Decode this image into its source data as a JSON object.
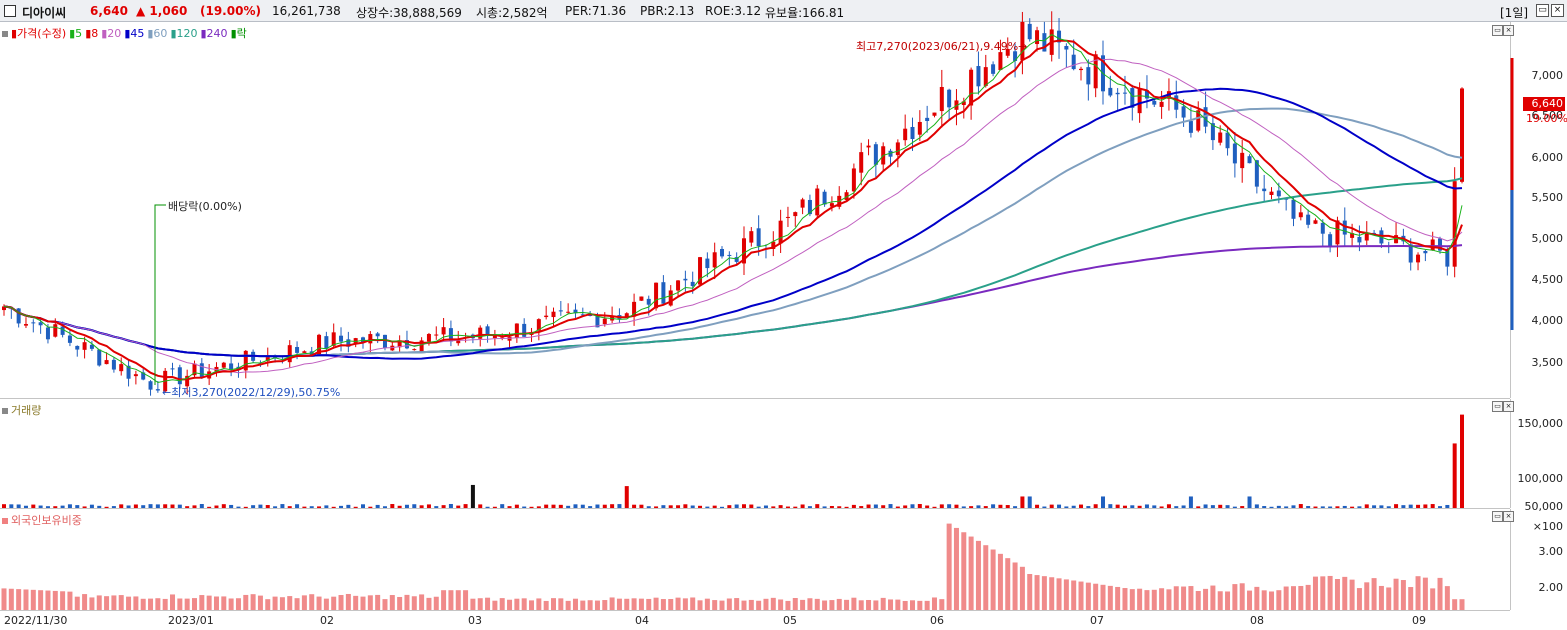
{
  "header": {
    "name": "디아이씨",
    "price": "6,640",
    "change": "▲ 1,060",
    "change_pct": "(19.00%)",
    "volume": "16,261,738",
    "listed_shares": "상장수:38,888,569",
    "market_cap": "시총:2,582억",
    "per": "PER:71.36",
    "pbr": "PBR:2.13",
    "roe": "ROE:3.12",
    "float_ratio": "유보율:166.81",
    "period": "[1일]",
    "up_color": "#e00000",
    "down_color": "#1f5fbf"
  },
  "price_panel": {
    "legend": [
      "가격(수정)",
      "5",
      "8",
      "20",
      "45",
      "60",
      "120",
      "240",
      "락"
    ],
    "legend_colors": [
      "#e00000",
      "#19b219",
      "#e00000",
      "#c060c0",
      "#0000c8",
      "#7f9fbf",
      "#2aa08a",
      "#7a2abf",
      "#009000"
    ],
    "high_annotation": "최고7,270(2023/06/21),9.49%→",
    "low_annotation": "←최저3,270(2022/12/29),50.75%",
    "dividend_annotation": "배당락(0.00%)",
    "current_price_label": "6,640",
    "current_pct_label": "19.00%",
    "y_ticks": [
      "7,000",
      "6,500",
      "6,000",
      "5,500",
      "5,000",
      "4,500",
      "4,000",
      "3,500"
    ]
  },
  "volume_panel": {
    "legend": "거래량",
    "y_ticks": [
      "150,000",
      "100,000",
      "50,000",
      "×100"
    ]
  },
  "foreign_panel": {
    "legend": "외국인보유비중",
    "y_ticks": [
      "3.00",
      "2.00"
    ]
  },
  "x_axis": [
    "2022/11/30",
    "2023/01",
    "02",
    "03",
    "04",
    "05",
    "06",
    "07",
    "08",
    "09"
  ],
  "chart_data": {
    "type": "candlestick",
    "title": "",
    "price_range": [
      3100,
      7400
    ],
    "key_points": [
      {
        "label": "2022/11/30",
        "close": 4150
      },
      {
        "label": "2022/12/29 low",
        "close": 3270
      },
      {
        "label": "2023/03",
        "close": 3800
      },
      {
        "label": "2023/04",
        "close": 4100
      },
      {
        "label": "2023/05",
        "close": 5100
      },
      {
        "label": "2023/06/21 high",
        "close": 7270
      },
      {
        "label": "2023/07",
        "close": 6300
      },
      {
        "label": "2023/08",
        "close": 5050
      },
      {
        "label": "2023/09",
        "close": 4700
      },
      {
        "label": "latest",
        "close": 6640
      }
    ],
    "volume_range": [
      0,
      170000
    ],
    "foreign_ratio_range": [
      1.5,
      4.0
    ]
  }
}
